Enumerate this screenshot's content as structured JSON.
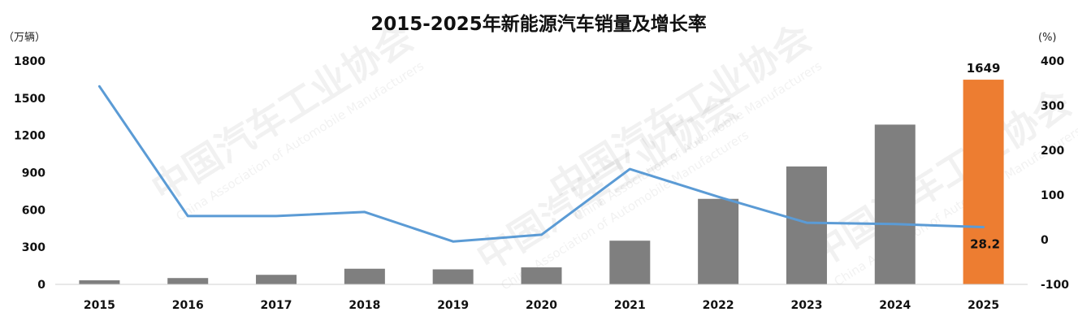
{
  "chart_data": {
    "type": "bar",
    "title": "2015-2025年新能源汽车销量及增长率",
    "categories": [
      "2015",
      "2016",
      "2017",
      "2018",
      "2019",
      "2020",
      "2021",
      "2022",
      "2023",
      "2024",
      "2025"
    ],
    "series": [
      {
        "kind": "bar",
        "axis": "left",
        "values": [
          33,
          51,
          77,
          126,
          121,
          137,
          352,
          689,
          950,
          1287,
          1649
        ],
        "colors": [
          "#7f7f7f",
          "#7f7f7f",
          "#7f7f7f",
          "#7f7f7f",
          "#7f7f7f",
          "#7f7f7f",
          "#7f7f7f",
          "#7f7f7f",
          "#7f7f7f",
          "#7f7f7f",
          "#ed7d31"
        ]
      },
      {
        "kind": "line",
        "axis": "right",
        "color": "#5b9bd5",
        "values": [
          343,
          53,
          53,
          62,
          -4,
          11,
          158,
          96,
          38,
          35,
          28.2
        ]
      }
    ],
    "y_left": {
      "unit": "（万辆）",
      "range": [
        0,
        1800
      ],
      "ticks": [
        "0",
        "300",
        "600",
        "900",
        "1200",
        "1500",
        "1800"
      ]
    },
    "y_right": {
      "unit": "(%)",
      "range": [
        -100,
        400
      ],
      "ticks": [
        "-100",
        "0",
        "100",
        "200",
        "300",
        "400"
      ]
    },
    "annotations": [
      {
        "series": 0,
        "index": 10,
        "text": "1649"
      },
      {
        "series": 1,
        "index": 10,
        "text": "28.2"
      }
    ],
    "grid": false,
    "legend": "none"
  },
  "watermark": {
    "cn": "中国汽车工业协会",
    "en": "China Association of Automobile Manufacturers"
  }
}
